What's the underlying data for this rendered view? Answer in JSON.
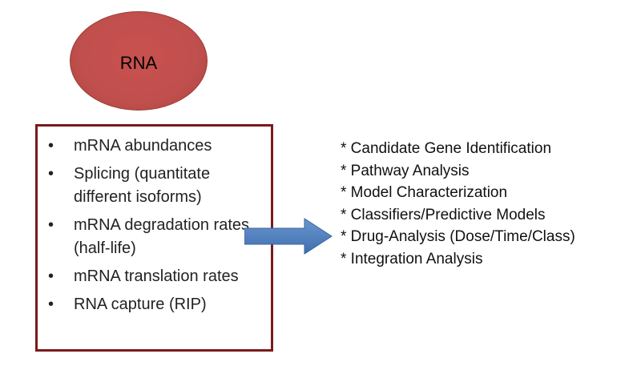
{
  "rna_node": {
    "label": "RNA"
  },
  "measurements": [
    {
      "bullet": "•",
      "text": "mRNA abundances"
    },
    {
      "bullet": "•",
      "text": "Splicing (quantitate different isoforms)"
    },
    {
      "bullet": "•",
      "text": "mRNA degradation rates (half-life)"
    },
    {
      "bullet": "•",
      "text": "mRNA translation rates"
    },
    {
      "bullet": "•",
      "text": "RNA capture (RIP)"
    }
  ],
  "applications": [
    "* Candidate Gene Identification",
    "* Pathway Analysis",
    "* Model Characterization",
    "* Classifiers/Predictive Models",
    "* Drug-Analysis (Dose/Time/Class)",
    "* Integration Analysis"
  ],
  "colors": {
    "circle_fill": "#c0504d",
    "box_border": "#7a1a1a",
    "arrow_fill": "#4f81bd"
  }
}
